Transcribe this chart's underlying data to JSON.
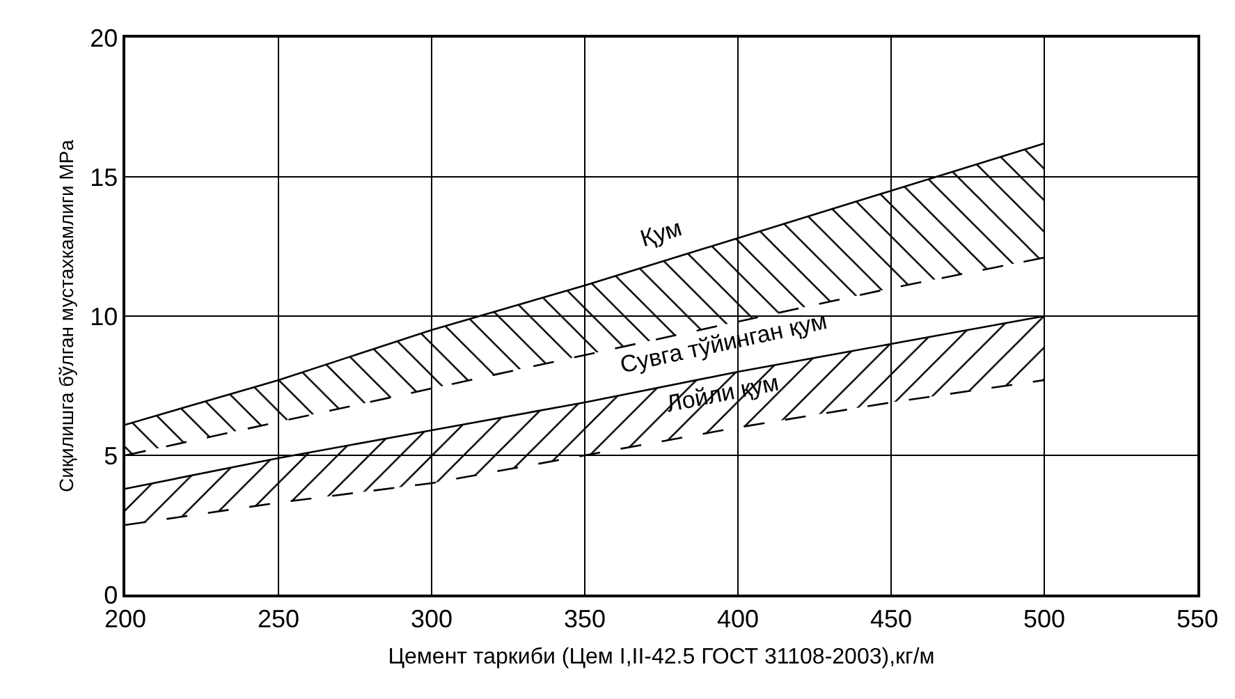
{
  "chart_data": {
    "type": "line",
    "xlabel": "Цемент таркиби (Цем I,II-42.5 ГОСТ 31108-2003),кг/м",
    "ylabel": "Сиқилишга бўлган мустахкамлиги MPa",
    "x": [
      200,
      250,
      300,
      350,
      400,
      450,
      500
    ],
    "series": [
      {
        "name": "Қум",
        "color": "#000000",
        "line_style": "solid",
        "values": [
          6.1,
          7.7,
          9.5,
          11.1,
          12.8,
          14.5,
          16.2
        ]
      },
      {
        "name": "Сувга тўйинган қум",
        "color": "#000000",
        "line_style": "dashed",
        "values": [
          5.0,
          6.2,
          7.4,
          8.6,
          9.8,
          11.0,
          12.1
        ],
        "lower": [
          5.0,
          6.2,
          7.4,
          8.6,
          9.8,
          11.0,
          12.1
        ],
        "upper": [
          6.1,
          7.7,
          9.5,
          11.1,
          12.8,
          14.5,
          16.2
        ]
      },
      {
        "name": "Лойли қум",
        "color": "#000000",
        "line_style": "solid",
        "values": [
          3.8,
          4.9,
          5.9,
          6.9,
          8.0,
          9.0,
          10.0
        ]
      },
      {
        "color": "#000000",
        "line_style": "dashed",
        "values": [
          2.5,
          3.3,
          4.0,
          5.0,
          6.0,
          6.9,
          7.7
        ],
        "lower": [
          2.5,
          3.3,
          4.0,
          5.0,
          6.0,
          6.9,
          7.7
        ],
        "upper": [
          3.8,
          4.9,
          5.9,
          6.9,
          8.0,
          9.0,
          10.0
        ]
      }
    ],
    "xlim": [
      200,
      550
    ],
    "xticks": [
      200,
      250,
      300,
      350,
      400,
      450,
      500,
      550
    ],
    "ylim": [
      0,
      20
    ],
    "yticks": [
      0,
      5,
      10,
      15,
      20
    ],
    "grid": true,
    "legend": false,
    "marker": "none"
  }
}
